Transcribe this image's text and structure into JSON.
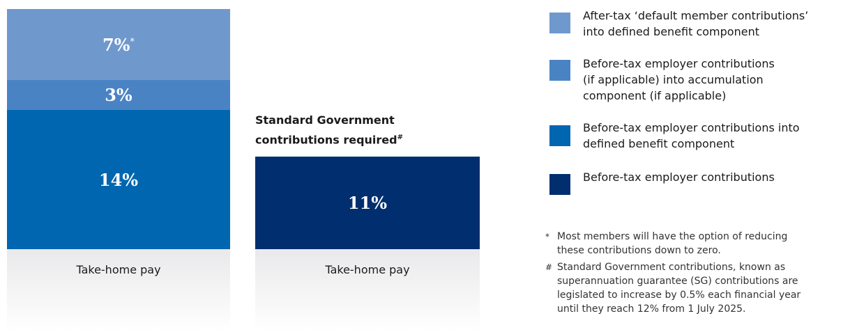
{
  "left_column": {
    "blocks": [
      {
        "label": "7%",
        "note_mark": "*"
      },
      {
        "label": "3%"
      },
      {
        "label": "14%"
      }
    ],
    "base_label": "Take-home pay"
  },
  "right_column": {
    "title": "Standard Government contributions required",
    "title_mark": "#",
    "blocks": [
      {
        "label": "11%"
      }
    ],
    "base_label": "Take-home pay"
  },
  "legend": [
    {
      "lines": [
        "After-tax ‘default member contributions’",
        "into defined benefit component"
      ]
    },
    {
      "lines": [
        "Before-tax employer contributions",
        "(if applicable) into accumulation",
        "component (if applicable)"
      ]
    },
    {
      "lines": [
        "Before-tax employer contributions into",
        "defined benefit component"
      ]
    },
    {
      "lines": [
        "Before-tax employer contributions"
      ]
    }
  ],
  "footnotes": [
    {
      "mark": "*",
      "lines": [
        "Most members will have the option of reducing",
        "these contributions down to zero."
      ]
    },
    {
      "mark": "#",
      "lines": [
        "Standard Government contributions, known as",
        "superannuation guarantee (SG) contributions are",
        "legislated to increase by 0.5% each financial year",
        "until they reach 12% from 1 July 2025."
      ]
    }
  ]
}
